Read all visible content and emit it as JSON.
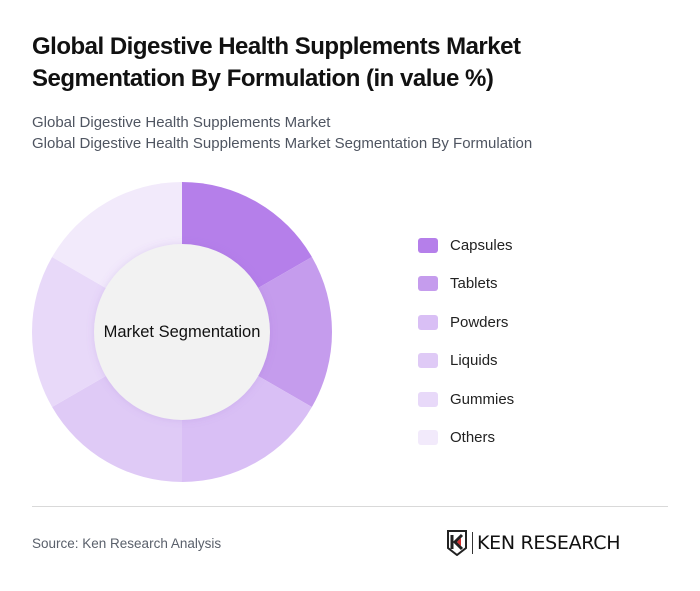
{
  "header": {
    "title": "Global Digestive Health Supplements Market Segmentation By Formulation (in value %)",
    "subtitle_line1": "Global Digestive Health Supplements Market",
    "subtitle_line2": "Global Digestive Health Supplements Market Segmentation By Formulation"
  },
  "chart_data": {
    "type": "pie",
    "variant": "donut",
    "title": "Global Digestive Health Supplements Market Segmentation By Formulation (in value %)",
    "center_label": "Market Segmentation",
    "categories": [
      "Capsules",
      "Tablets",
      "Powders",
      "Liquids",
      "Gummies",
      "Others"
    ],
    "values": [
      16.67,
      16.67,
      16.67,
      16.67,
      16.67,
      16.67
    ],
    "colors": [
      "#b57fea",
      "#c59ced",
      "#d9bff5",
      "#dfcaf6",
      "#e8d9f9",
      "#f2eafb"
    ],
    "legend_position": "right",
    "start_angle_deg": 0,
    "direction": "clockwise"
  },
  "legend": {
    "items": [
      {
        "label": "Capsules",
        "color": "#b57fea"
      },
      {
        "label": "Tablets",
        "color": "#c59ced"
      },
      {
        "label": "Powders",
        "color": "#d9bff5"
      },
      {
        "label": "Liquids",
        "color": "#dfcaf6"
      },
      {
        "label": "Gummies",
        "color": "#e8d9f9"
      },
      {
        "label": "Others",
        "color": "#f2eafb"
      }
    ]
  },
  "footer": {
    "source": "Source: Ken Research Analysis",
    "logo_text": "KEN RESEARCH"
  }
}
